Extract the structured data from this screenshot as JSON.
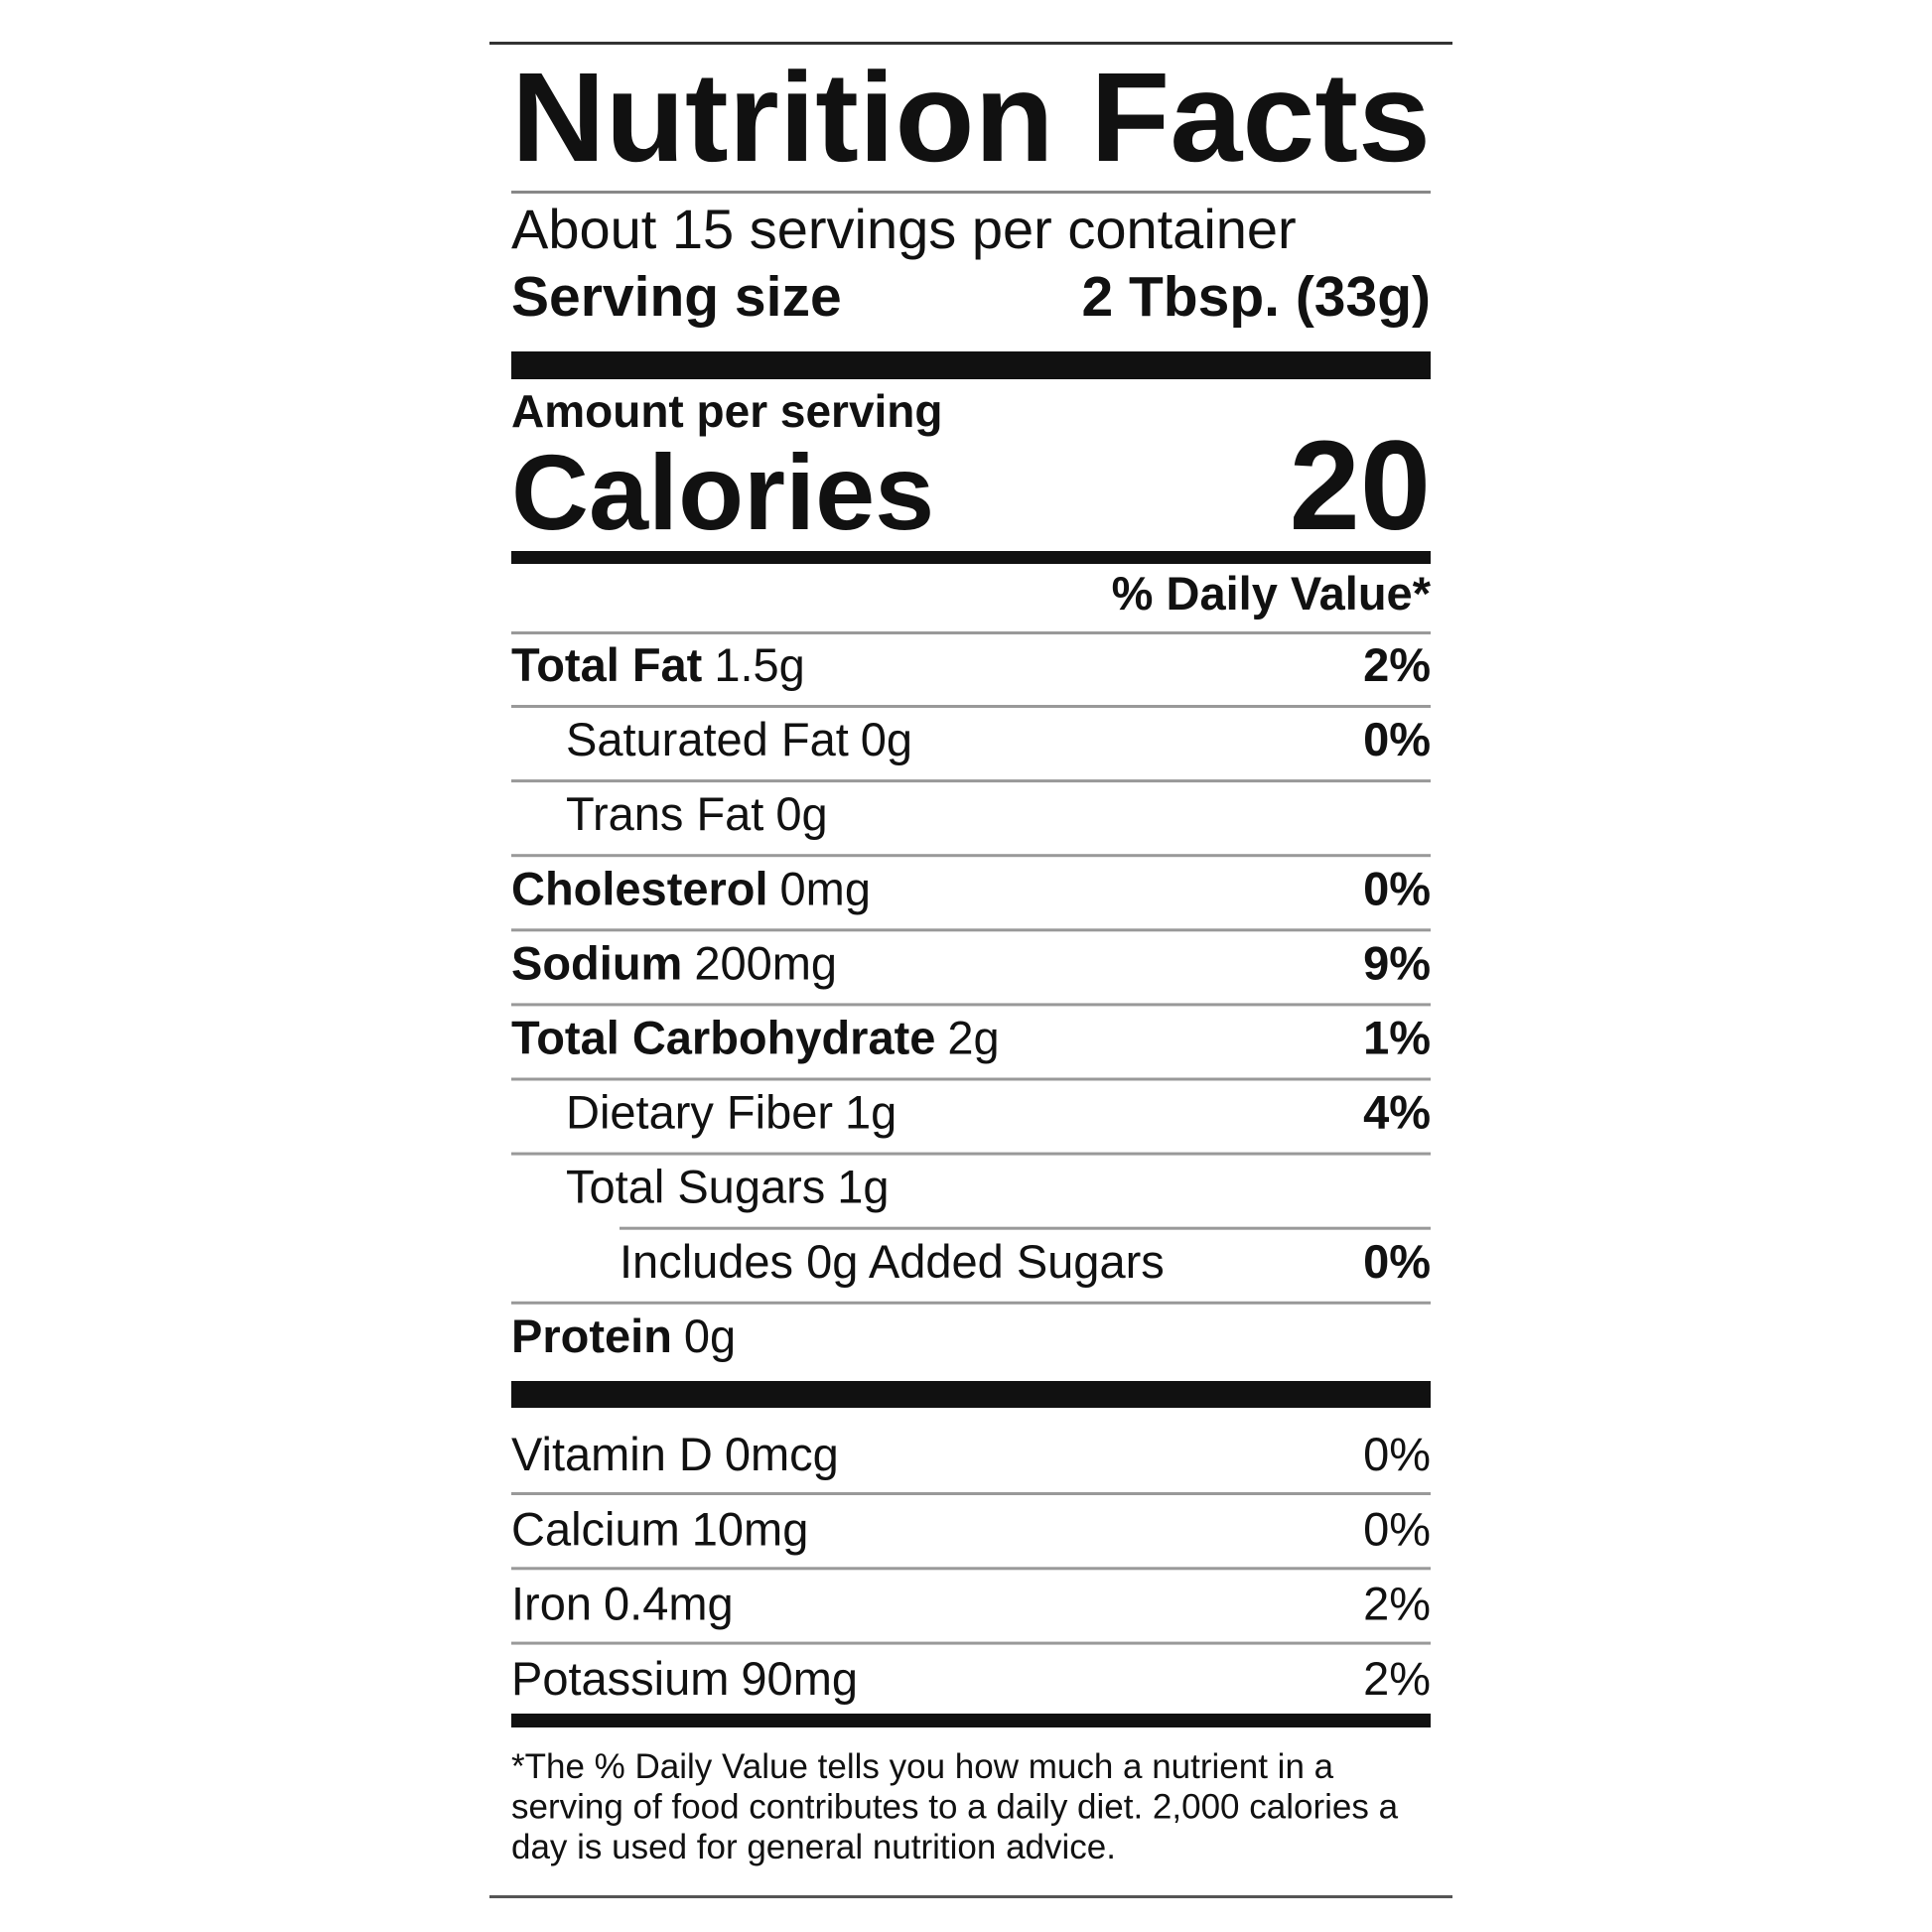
{
  "header": {
    "title": "Nutrition Facts",
    "servings_per_container": "About 15 servings per container",
    "serving_size": {
      "label": "Serving size",
      "value": "2 Tbsp. (33g)"
    }
  },
  "amount_per_serving": "Amount per serving",
  "calories": {
    "label": "Calories",
    "value": 20
  },
  "daily_value_header": "% Daily Value*",
  "nutrients": [
    {
      "name": "Total Fat",
      "amount": "1.5g",
      "dv": "2%"
    },
    {
      "name": "Saturated Fat",
      "amount": "0g",
      "dv": "0%"
    },
    {
      "name": "Trans Fat",
      "amount": "0g"
    },
    {
      "name": "Cholesterol",
      "amount": "0mg",
      "dv": "0%"
    },
    {
      "name": "Sodium",
      "amount": "200mg",
      "dv": "9%"
    },
    {
      "name": "Total Carbohydrate",
      "amount": "2g",
      "dv": "1%"
    },
    {
      "name": "Dietary Fiber",
      "amount": "1g",
      "dv": "4%"
    },
    {
      "name": "Total Sugars",
      "amount": "1g"
    },
    {
      "name": "Includes 0g Added Sugars",
      "dv": "0%"
    },
    {
      "name": "Protein",
      "amount": "0g"
    }
  ],
  "vitamins": [
    {
      "name": "Vitamin D",
      "amount": "0mcg",
      "dv": "0%"
    },
    {
      "name": "Calcium",
      "amount": "10mg",
      "dv": "0%"
    },
    {
      "name": "Iron",
      "amount": "0.4mg",
      "dv": "2%"
    },
    {
      "name": "Potassium",
      "amount": "90mg",
      "dv": "2%"
    }
  ],
  "footnote": [
    "*The % Daily Value tells you how much a nutrient in a",
    "serving of food contributes to a daily diet. 2,000 calories a",
    "day is used for general nutrition advice."
  ]
}
